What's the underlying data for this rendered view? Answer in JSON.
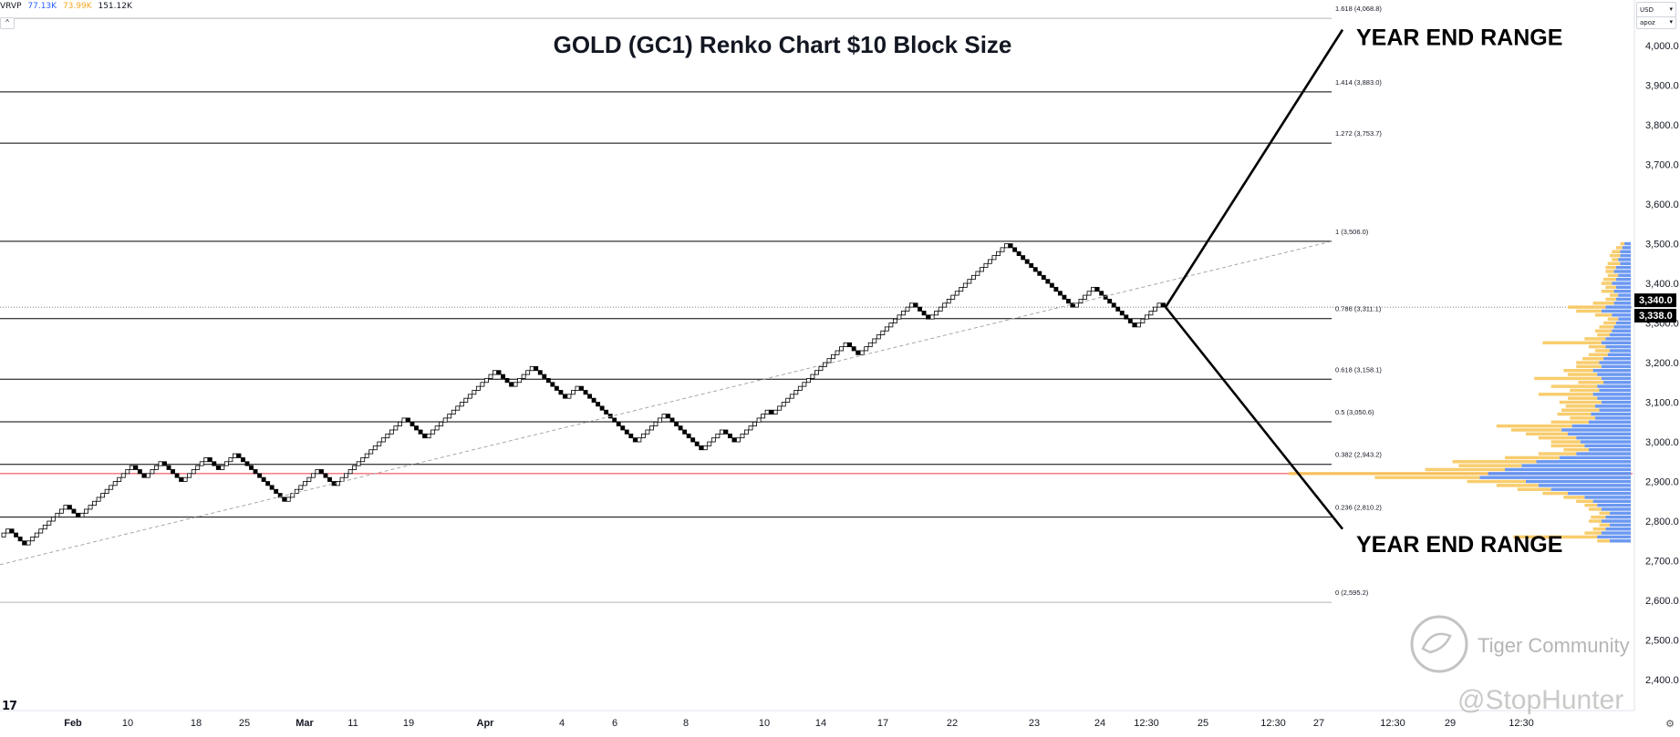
{
  "header": {
    "indicator_name": "VRVP",
    "indicator_values": [
      {
        "text": "77.13K",
        "color": "#2962ff"
      },
      {
        "text": "73.99K",
        "color": "#f5a623"
      },
      {
        "text": "151.12K",
        "color": "#131722"
      }
    ],
    "collapse_glyph": "^"
  },
  "currency": {
    "value": "USD",
    "sub": "apoz",
    "chevron": "▾"
  },
  "tradingview_logo": "17",
  "chart_data": {
    "type": "line",
    "style": "renko",
    "brick_size": 10,
    "title": "GOLD (GC1) Renko Chart $10 Block Size",
    "ylim": [
      2350,
      4120
    ],
    "yticks": [
      2400,
      2500,
      2600,
      2700,
      2800,
      2900,
      3000,
      3100,
      3200,
      3300,
      3400,
      3500,
      3600,
      3700,
      3800,
      3900,
      4000
    ],
    "ytick_labels": [
      "2,400.0",
      "2,500.0",
      "2,600.0",
      "2,700.0",
      "2,800.0",
      "2,900.0",
      "3,000.0",
      "3,100.0",
      "3,200.0",
      "3,300.0",
      "3,400.0",
      "3,500.0",
      "3,600.0",
      "3,700.0",
      "3,800.0",
      "3,900.0",
      "4,000.0"
    ],
    "xtick_labels": [
      "Feb",
      "10",
      "18",
      "25",
      "Mar",
      "11",
      "19",
      "Apr",
      "4",
      "6",
      "8",
      "10",
      "14",
      "17",
      "22",
      "23",
      "24",
      "12:30",
      "25",
      "12:30",
      "27",
      "12:30",
      "29",
      "12:30"
    ],
    "price_labels": [
      {
        "text": "3,340.0",
        "value": 3340
      },
      {
        "text": "3,338.0",
        "value": 3338
      }
    ],
    "fib_levels": [
      {
        "label": "1.618 (4,068.8)",
        "value": 4068.8
      },
      {
        "label": "1.414 (3,883.0)",
        "value": 3883.0
      },
      {
        "label": "1.272 (3,753.7)",
        "value": 3753.7
      },
      {
        "label": "1 (3,506.0)",
        "value": 3506.0
      },
      {
        "label": "0.786 (3,311.1)",
        "value": 3311.1
      },
      {
        "label": "0.618 (3,158.1)",
        "value": 3158.1
      },
      {
        "label": "0.5 (3,050.6)",
        "value": 3050.6
      },
      {
        "label": "0.382 (2,943.2)",
        "value": 2943.2
      },
      {
        "label": "0.236 (2,810.2)",
        "value": 2810.2
      },
      {
        "label": "0 (2,595.2)",
        "value": 2595.2
      }
    ],
    "red_level": 2920,
    "renko_pivots": [
      2760,
      2780,
      2740,
      2840,
      2810,
      2940,
      2910,
      2950,
      2900,
      2960,
      2930,
      2970,
      2900,
      2850,
      2930,
      2890,
      3060,
      3010,
      3180,
      3140,
      3190,
      3110,
      3140,
      3000,
      3070,
      2980,
      3030,
      3000,
      3080,
      3070,
      3250,
      3220,
      3350,
      3310,
      3500,
      3340,
      3390,
      3290,
      3350,
      3340
    ],
    "trendline": {
      "from": 2690,
      "to": 3506
    },
    "projection": {
      "from": 3340,
      "up": 4040,
      "down": 2780
    },
    "annotations": [
      {
        "text": "YEAR END RANGE",
        "value": 4020
      },
      {
        "text": "YEAR END RANGE",
        "value": 2740
      }
    ],
    "volume_profile": {
      "bucket_size": 10,
      "buckets": [
        {
          "price": 3500,
          "buy": 0.03,
          "sell": 0.02
        },
        {
          "price": 3490,
          "buy": 0.04,
          "sell": 0.03
        },
        {
          "price": 3480,
          "buy": 0.05,
          "sell": 0.04
        },
        {
          "price": 3470,
          "buy": 0.05,
          "sell": 0.05
        },
        {
          "price": 3460,
          "buy": 0.06,
          "sell": 0.03
        },
        {
          "price": 3450,
          "buy": 0.05,
          "sell": 0.06
        },
        {
          "price": 3440,
          "buy": 0.07,
          "sell": 0.05
        },
        {
          "price": 3430,
          "buy": 0.08,
          "sell": 0.04
        },
        {
          "price": 3420,
          "buy": 0.06,
          "sell": 0.05
        },
        {
          "price": 3410,
          "buy": 0.07,
          "sell": 0.06
        },
        {
          "price": 3400,
          "buy": 0.09,
          "sell": 0.05
        },
        {
          "price": 3390,
          "buy": 0.07,
          "sell": 0.05
        },
        {
          "price": 3380,
          "buy": 0.08,
          "sell": 0.06
        },
        {
          "price": 3370,
          "buy": 0.06,
          "sell": 0.04
        },
        {
          "price": 3360,
          "buy": 0.07,
          "sell": 0.05
        },
        {
          "price": 3350,
          "buy": 0.08,
          "sell": 0.1
        },
        {
          "price": 3340,
          "buy": 0.12,
          "sell": 0.18
        },
        {
          "price": 3330,
          "buy": 0.14,
          "sell": 0.12
        },
        {
          "price": 3320,
          "buy": 0.09,
          "sell": 0.08
        },
        {
          "price": 3310,
          "buy": 0.06,
          "sell": 0.05
        },
        {
          "price": 3300,
          "buy": 0.07,
          "sell": 0.06
        },
        {
          "price": 3290,
          "buy": 0.08,
          "sell": 0.07
        },
        {
          "price": 3280,
          "buy": 0.09,
          "sell": 0.08
        },
        {
          "price": 3270,
          "buy": 0.1,
          "sell": 0.06
        },
        {
          "price": 3260,
          "buy": 0.12,
          "sell": 0.1
        },
        {
          "price": 3250,
          "buy": 0.14,
          "sell": 0.28
        },
        {
          "price": 3240,
          "buy": 0.12,
          "sell": 0.08
        },
        {
          "price": 3230,
          "buy": 0.1,
          "sell": 0.07
        },
        {
          "price": 3220,
          "buy": 0.11,
          "sell": 0.09
        },
        {
          "price": 3210,
          "buy": 0.13,
          "sell": 0.1
        },
        {
          "price": 3200,
          "buy": 0.15,
          "sell": 0.11
        },
        {
          "price": 3190,
          "buy": 0.14,
          "sell": 0.12
        },
        {
          "price": 3180,
          "buy": 0.18,
          "sell": 0.14
        },
        {
          "price": 3170,
          "buy": 0.16,
          "sell": 0.14
        },
        {
          "price": 3160,
          "buy": 0.14,
          "sell": 0.32
        },
        {
          "price": 3150,
          "buy": 0.13,
          "sell": 0.12
        },
        {
          "price": 3140,
          "buy": 0.16,
          "sell": 0.22
        },
        {
          "price": 3130,
          "buy": 0.15,
          "sell": 0.14
        },
        {
          "price": 3120,
          "buy": 0.18,
          "sell": 0.26
        },
        {
          "price": 3110,
          "buy": 0.16,
          "sell": 0.14
        },
        {
          "price": 3100,
          "buy": 0.14,
          "sell": 0.2
        },
        {
          "price": 3090,
          "buy": 0.17,
          "sell": 0.14
        },
        {
          "price": 3080,
          "buy": 0.15,
          "sell": 0.18
        },
        {
          "price": 3070,
          "buy": 0.19,
          "sell": 0.16
        },
        {
          "price": 3060,
          "buy": 0.17,
          "sell": 0.12
        },
        {
          "price": 3050,
          "buy": 0.2,
          "sell": 0.18
        },
        {
          "price": 3040,
          "buy": 0.28,
          "sell": 0.36
        },
        {
          "price": 3030,
          "buy": 0.33,
          "sell": 0.24
        },
        {
          "price": 3020,
          "buy": 0.3,
          "sell": 0.2
        },
        {
          "price": 3010,
          "buy": 0.26,
          "sell": 0.18
        },
        {
          "price": 3000,
          "buy": 0.24,
          "sell": 0.14
        },
        {
          "price": 2990,
          "buy": 0.22,
          "sell": 0.16
        },
        {
          "price": 2980,
          "buy": 0.2,
          "sell": 0.12
        },
        {
          "price": 2970,
          "buy": 0.26,
          "sell": 0.18
        },
        {
          "price": 2960,
          "buy": 0.34,
          "sell": 0.26
        },
        {
          "price": 2950,
          "buy": 0.45,
          "sell": 0.4
        },
        {
          "price": 2940,
          "buy": 0.52,
          "sell": 0.3
        },
        {
          "price": 2930,
          "buy": 0.6,
          "sell": 0.38
        },
        {
          "price": 2920,
          "buy": 0.68,
          "sell": 0.95
        },
        {
          "price": 2910,
          "buy": 0.72,
          "sell": 0.5
        },
        {
          "price": 2900,
          "buy": 0.5,
          "sell": 0.28
        },
        {
          "price": 2890,
          "buy": 0.44,
          "sell": 0.2
        },
        {
          "price": 2880,
          "buy": 0.38,
          "sell": 0.16
        },
        {
          "price": 2870,
          "buy": 0.3,
          "sell": 0.12
        },
        {
          "price": 2860,
          "buy": 0.22,
          "sell": 0.1
        },
        {
          "price": 2850,
          "buy": 0.18,
          "sell": 0.08
        },
        {
          "price": 2840,
          "buy": 0.16,
          "sell": 0.06
        },
        {
          "price": 2830,
          "buy": 0.14,
          "sell": 0.06
        },
        {
          "price": 2820,
          "buy": 0.1,
          "sell": 0.05
        },
        {
          "price": 2810,
          "buy": 0.12,
          "sell": 0.07
        },
        {
          "price": 2800,
          "buy": 0.14,
          "sell": 0.06
        },
        {
          "price": 2790,
          "buy": 0.1,
          "sell": 0.05
        },
        {
          "price": 2780,
          "buy": 0.12,
          "sell": 0.06
        },
        {
          "price": 2770,
          "buy": 0.14,
          "sell": 0.08
        },
        {
          "price": 2760,
          "buy": 0.16,
          "sell": 0.4
        },
        {
          "price": 2750,
          "buy": 0.1,
          "sell": 0.06
        }
      ]
    }
  },
  "watermark": {
    "brand": "Tiger Community",
    "handle": "@StopHunter"
  },
  "colors": {
    "up_brick_fill": "#ffffff",
    "down_brick_fill": "#000000",
    "brick_border": "#000000",
    "fib_line": "#000000",
    "red_level": "#f23645",
    "trendline": "#9e9e9e",
    "projection": "#000000",
    "vp_buy": "#5b8def",
    "vp_sell": "#f7c455",
    "price_label_bg": "#000000"
  }
}
